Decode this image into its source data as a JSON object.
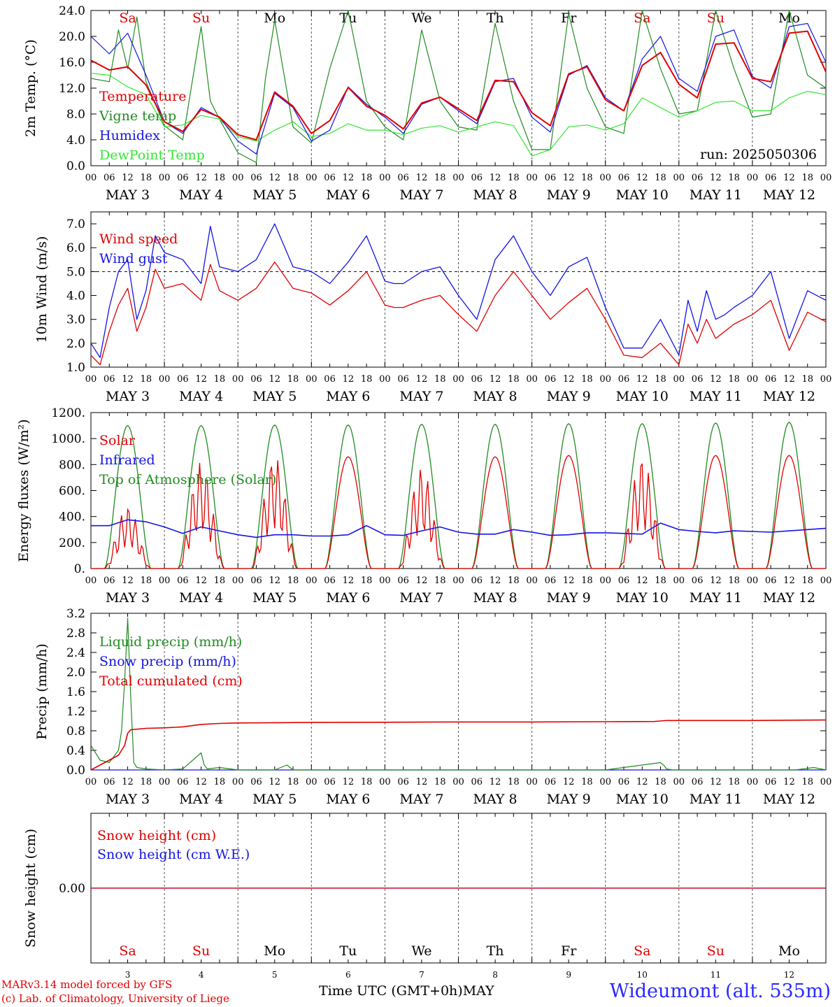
{
  "meta": {
    "run_label": "run: 2025050306",
    "credit_line1": "MARv3.14 model forced by GFS",
    "credit_line2": "(c) Lab. of Climatology, University of Liege",
    "station": "Wideumont (alt. 535m)",
    "xaxis_title": "Time UTC (GMT+0h)",
    "month": "MAY"
  },
  "colors": {
    "red": "#e00000",
    "dark_green": "#228b22",
    "blue": "#1414e6",
    "light_green": "#32e632",
    "saturday_red": "#e00000",
    "black": "#000000"
  },
  "days": {
    "names": [
      "Sa",
      "Su",
      "Mo",
      "Tu",
      "We",
      "Th",
      "Fr",
      "Sa",
      "Su",
      "Mo"
    ],
    "weekend": [
      true,
      true,
      false,
      false,
      false,
      false,
      false,
      true,
      true,
      false
    ],
    "dates": [
      "3",
      "4",
      "5",
      "6",
      "7",
      "8",
      "9",
      "10",
      "11",
      "12"
    ],
    "hour_ticks": [
      "00",
      "06",
      "12",
      "18"
    ],
    "final_tick": "00",
    "date_labels": [
      "MAY  3",
      "MAY  4",
      "MAY  5",
      "MAY  6",
      "MAY  7",
      "MAY  8",
      "MAY  9",
      "MAY 10",
      "MAY 11",
      "MAY 12"
    ]
  },
  "chart_data": [
    {
      "type": "line",
      "title": "",
      "ylabel": "2m Temp. (°C)",
      "ylim": [
        0,
        24
      ],
      "yticks": [
        "0.0",
        "4.0",
        "8.0",
        "12.0",
        "16.0",
        "20.0",
        "24.0"
      ],
      "x_unit": "hours since 2025-05-03 00 UTC",
      "xlim": [
        0,
        240
      ],
      "series": [
        {
          "name": "Temperature",
          "color": "#e00000",
          "x": [
            0,
            6,
            12,
            18,
            24,
            30,
            36,
            42,
            48,
            54,
            60,
            66,
            72,
            78,
            84,
            90,
            96,
            102,
            108,
            114,
            120,
            126,
            132,
            138,
            144,
            150,
            156,
            162,
            168,
            174,
            180,
            186,
            192,
            198,
            204,
            210,
            216,
            222,
            228,
            234,
            240
          ],
          "y": [
            16.3,
            14.8,
            15.3,
            12.5,
            6.8,
            5.3,
            8.7,
            7.5,
            4.8,
            4.0,
            11.4,
            9.2,
            5.0,
            7.0,
            12.1,
            9.2,
            7.8,
            5.7,
            9.7,
            10.6,
            8.8,
            7.0,
            13.2,
            13.0,
            8.2,
            6.2,
            14.2,
            15.3,
            10.2,
            8.5,
            15.5,
            17.5,
            12.6,
            10.5,
            18.8,
            19.0,
            13.5,
            13.0,
            20.5,
            20.8,
            14.5
          ]
        },
        {
          "name": "Vigne temp",
          "color": "#228b22",
          "x": [
            0,
            6,
            9,
            12,
            15,
            18,
            24,
            30,
            36,
            39,
            42,
            48,
            54,
            57,
            60,
            66,
            72,
            78,
            84,
            90,
            96,
            102,
            108,
            114,
            120,
            126,
            132,
            138,
            144,
            150,
            156,
            162,
            168,
            174,
            180,
            186,
            192,
            198,
            204,
            210,
            216,
            222,
            228,
            234,
            240
          ],
          "y": [
            13.5,
            13.0,
            21.0,
            15.0,
            23.0,
            13.0,
            6.2,
            4.0,
            21.5,
            10.0,
            7.2,
            2.0,
            0.5,
            13.5,
            22.5,
            6.0,
            3.5,
            15.0,
            24.0,
            10.0,
            6.0,
            4.0,
            21.0,
            10.0,
            6.0,
            5.5,
            22.0,
            10.0,
            2.5,
            2.5,
            23.5,
            12.0,
            6.0,
            5.0,
            24.0,
            15.0,
            8.0,
            8.5,
            24.0,
            15.0,
            7.5,
            8.0,
            24.0,
            14.0,
            12.0
          ]
        },
        {
          "name": "Humidex",
          "color": "#1414e6",
          "x": [
            0,
            6,
            12,
            18,
            24,
            30,
            36,
            42,
            48,
            54,
            60,
            66,
            72,
            78,
            84,
            90,
            96,
            102,
            108,
            114,
            120,
            126,
            132,
            138,
            144,
            150,
            156,
            162,
            168,
            174,
            180,
            186,
            192,
            198,
            204,
            210,
            216,
            222,
            228,
            234,
            240
          ],
          "y": [
            20.0,
            17.3,
            20.5,
            14.0,
            6.8,
            5.0,
            9.0,
            7.5,
            3.8,
            1.8,
            11.2,
            9.0,
            3.8,
            5.5,
            12.2,
            9.5,
            7.5,
            5.0,
            9.5,
            10.6,
            8.5,
            6.5,
            13.0,
            13.5,
            7.5,
            5.2,
            14.0,
            15.5,
            10.5,
            8.5,
            16.5,
            20.0,
            13.5,
            11.5,
            20.0,
            21.0,
            13.8,
            12.0,
            21.5,
            22.0,
            16.0
          ]
        },
        {
          "name": "DewPoint Temp",
          "color": "#32e632",
          "x": [
            0,
            6,
            12,
            18,
            24,
            30,
            36,
            42,
            48,
            54,
            60,
            66,
            72,
            78,
            84,
            90,
            96,
            102,
            108,
            114,
            120,
            126,
            132,
            138,
            144,
            150,
            156,
            162,
            168,
            174,
            180,
            186,
            192,
            198,
            204,
            210,
            216,
            222,
            228,
            234,
            240
          ],
          "y": [
            14.3,
            14.0,
            12.2,
            11.0,
            6.0,
            6.3,
            7.8,
            7.2,
            4.5,
            3.8,
            5.5,
            6.8,
            4.5,
            5.0,
            6.5,
            5.5,
            5.5,
            4.8,
            5.8,
            6.2,
            5.2,
            6.0,
            6.8,
            6.2,
            1.5,
            2.5,
            6.0,
            6.3,
            5.5,
            6.5,
            10.5,
            9.0,
            7.5,
            8.5,
            9.8,
            10.0,
            8.5,
            8.5,
            10.5,
            11.5,
            11.0
          ]
        }
      ]
    },
    {
      "type": "line",
      "title": "",
      "ylabel": "10m Wind (m/s)",
      "ylim": [
        1,
        7.5
      ],
      "yticks": [
        "1.0",
        "2.0",
        "3.0",
        "4.0",
        "5.0",
        "6.0",
        "7.0"
      ],
      "reference_line": 5.0,
      "xlim": [
        0,
        240
      ],
      "series": [
        {
          "name": "Wind speed",
          "color": "#e00000",
          "x": [
            0,
            3,
            6,
            9,
            12,
            15,
            18,
            21,
            24,
            30,
            36,
            39,
            42,
            48,
            54,
            60,
            66,
            72,
            78,
            84,
            90,
            96,
            99,
            102,
            108,
            114,
            120,
            126,
            132,
            138,
            144,
            150,
            156,
            162,
            168,
            174,
            180,
            186,
            192,
            195,
            198,
            201,
            204,
            207,
            210,
            216,
            222,
            228,
            234,
            240
          ],
          "y": [
            1.5,
            1.1,
            2.5,
            3.6,
            4.3,
            2.5,
            3.5,
            5.1,
            4.3,
            4.5,
            3.8,
            5.3,
            4.2,
            3.8,
            4.3,
            5.4,
            4.3,
            4.1,
            3.6,
            4.2,
            5.0,
            3.6,
            3.5,
            3.5,
            3.8,
            4.0,
            3.2,
            2.5,
            4.0,
            5.0,
            4.0,
            3.0,
            3.7,
            4.3,
            3.0,
            1.5,
            1.4,
            2.0,
            1.1,
            2.8,
            2.0,
            3.0,
            2.2,
            2.5,
            2.8,
            3.2,
            3.8,
            1.7,
            3.3,
            2.9
          ]
        },
        {
          "name": "Wind gust",
          "color": "#1414e6",
          "x": [
            0,
            3,
            6,
            9,
            12,
            15,
            18,
            21,
            24,
            30,
            36,
            39,
            42,
            48,
            54,
            60,
            66,
            72,
            78,
            84,
            90,
            96,
            99,
            102,
            108,
            114,
            120,
            126,
            132,
            138,
            144,
            150,
            156,
            162,
            168,
            174,
            180,
            186,
            192,
            195,
            198,
            201,
            204,
            207,
            210,
            216,
            222,
            228,
            234,
            240
          ],
          "y": [
            2.0,
            1.4,
            3.5,
            5.0,
            5.5,
            3.0,
            4.2,
            6.5,
            5.8,
            5.5,
            4.5,
            6.9,
            5.2,
            5.0,
            5.5,
            7.0,
            5.2,
            5.0,
            4.5,
            5.4,
            6.5,
            4.6,
            4.5,
            4.5,
            5.0,
            5.2,
            4.0,
            3.0,
            5.5,
            6.5,
            5.0,
            4.0,
            5.2,
            5.6,
            3.5,
            1.8,
            1.8,
            3.0,
            1.5,
            3.8,
            2.5,
            4.2,
            3.0,
            3.2,
            3.5,
            4.0,
            5.0,
            2.2,
            4.2,
            3.8
          ]
        }
      ]
    },
    {
      "type": "line",
      "title": "",
      "ylabel": "Energy fluxes (W/m²)",
      "ylim": [
        0,
        1200
      ],
      "yticks": [
        "0.",
        "200.",
        "400.",
        "600.",
        "800.",
        "1000.",
        "1200."
      ],
      "xlim": [
        0,
        240
      ],
      "series": [
        {
          "name": "Solar",
          "color": "#e00000",
          "peaks": [
            480,
            820,
            870,
            860,
            780,
            860,
            870,
            860,
            870,
            870
          ],
          "day_offsets_h": [
            0,
            24,
            48,
            72,
            96,
            120,
            144,
            168,
            192,
            216
          ]
        },
        {
          "name": "Infrared",
          "color": "#1414e6",
          "x": [
            0,
            6,
            12,
            18,
            24,
            30,
            36,
            42,
            48,
            54,
            60,
            66,
            72,
            78,
            84,
            90,
            96,
            102,
            108,
            114,
            120,
            126,
            132,
            138,
            144,
            150,
            156,
            162,
            168,
            174,
            180,
            186,
            192,
            198,
            204,
            210,
            216,
            222,
            228,
            234,
            240
          ],
          "y": [
            330,
            330,
            375,
            360,
            320,
            270,
            320,
            290,
            260,
            240,
            260,
            260,
            250,
            250,
            260,
            330,
            260,
            255,
            290,
            320,
            280,
            265,
            265,
            300,
            280,
            255,
            260,
            275,
            275,
            270,
            265,
            350,
            300,
            285,
            275,
            290,
            285,
            280,
            290,
            300,
            310
          ]
        },
        {
          "name": "Top of Atmosphere (Solar)",
          "color": "#228b22",
          "peaks": [
            1100,
            1100,
            1105,
            1105,
            1110,
            1110,
            1115,
            1115,
            1120,
            1125
          ],
          "day_offsets_h": [
            0,
            24,
            48,
            72,
            96,
            120,
            144,
            168,
            192,
            216
          ]
        }
      ]
    },
    {
      "type": "line",
      "title": "",
      "ylabel": "Precip (mm/h)",
      "ylim": [
        0,
        3.2
      ],
      "yticks": [
        "0.0",
        "0.4",
        "0.8",
        "1.2",
        "1.6",
        "2.0",
        "2.4",
        "2.8",
        "3.2"
      ],
      "xlim": [
        0,
        240
      ],
      "series": [
        {
          "name": "Liquid precip (mm/h)",
          "color": "#228b22",
          "x": [
            0,
            3,
            6,
            9,
            10,
            11,
            12,
            13,
            14,
            15,
            18,
            24,
            30,
            36,
            37,
            38,
            42,
            48,
            60,
            64,
            66,
            72,
            120,
            168,
            186,
            187,
            188,
            190,
            200,
            230,
            236,
            240
          ],
          "y": [
            0.5,
            0.2,
            0.15,
            0.4,
            0.8,
            1.8,
            3.1,
            1.5,
            0.15,
            0.05,
            0.02,
            0.0,
            0.02,
            0.35,
            0.1,
            0.02,
            0.05,
            0.0,
            0.0,
            0.1,
            0.0,
            0.0,
            0.0,
            0.0,
            0.15,
            0.1,
            0.02,
            0.0,
            0.0,
            0.0,
            0.05,
            0.0
          ]
        },
        {
          "name": "Snow precip (mm/h)",
          "color": "#1414e6",
          "x": [
            0,
            240
          ],
          "y": [
            0.0,
            0.0
          ]
        },
        {
          "name": "Total cumulated (cm)",
          "color": "#e00000",
          "x": [
            0,
            6,
            9,
            11,
            12,
            13,
            18,
            24,
            30,
            36,
            42,
            48,
            72,
            96,
            120,
            144,
            168,
            184,
            186,
            188,
            192,
            216,
            240
          ],
          "y": [
            0.0,
            0.2,
            0.3,
            0.5,
            0.75,
            0.82,
            0.85,
            0.86,
            0.88,
            0.93,
            0.95,
            0.96,
            0.97,
            0.975,
            0.98,
            0.98,
            0.985,
            0.99,
            1.0,
            1.01,
            1.01,
            1.01,
            1.02
          ]
        }
      ]
    },
    {
      "type": "line",
      "title": "",
      "ylabel": "Snow height (cm)",
      "yticks": [
        "0.00"
      ],
      "xlim": [
        0,
        240
      ],
      "series": [
        {
          "name": "Snow height (cm)",
          "color": "#e00000",
          "x": [
            0,
            240
          ],
          "y": [
            0,
            0
          ]
        },
        {
          "name": "Snow height (cm W.E.)",
          "color": "#1414e6",
          "x": [
            0,
            240
          ],
          "y": [
            0,
            0
          ]
        }
      ]
    }
  ]
}
